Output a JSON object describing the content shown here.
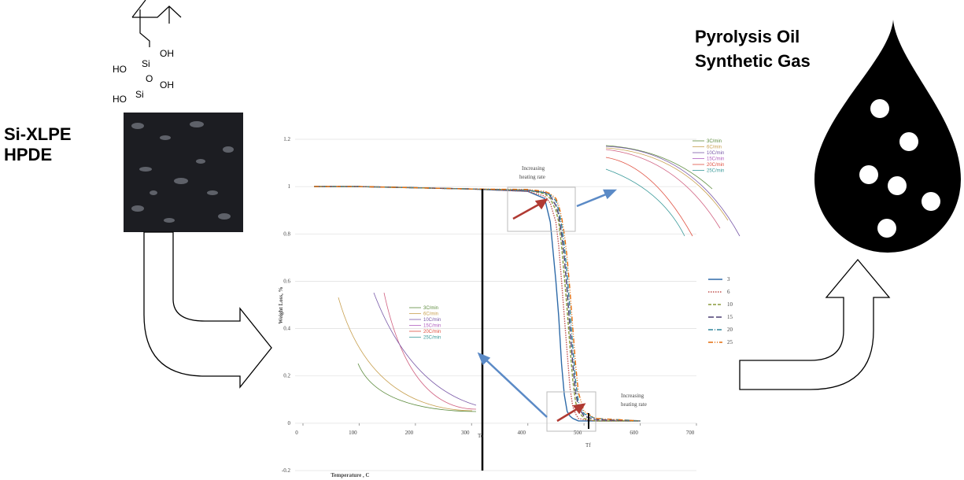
{
  "labels": {
    "material_1": "Si-XLPE",
    "material_2": "HPDE",
    "product_1": "Pyrolysis Oil",
    "product_2": "Synthetic Gas"
  },
  "structure": {
    "labels": [
      "OH",
      "HO",
      "Si",
      "O",
      "OH",
      "HO",
      "Si"
    ]
  },
  "annotations": {
    "increasing_1": [
      "Increasing",
      "heating rate"
    ],
    "increasing_2": [
      "Increasing",
      "heating rate"
    ],
    "t_onset": "To",
    "t_final": "Tf"
  },
  "insets": {
    "top_legend": [
      "3C/min",
      "6C/min",
      "10C/min",
      "15C/min",
      "20C/min",
      "25C/min"
    ],
    "bottom_legend": [
      "3C/min",
      "6C/min",
      "10C/min",
      "15C/min",
      "20C/min",
      "25C/min"
    ]
  },
  "chart_data": {
    "type": "line",
    "x_label": "Temperature , C",
    "y_label": "Weight Loss, %",
    "x": [
      20,
      100,
      200,
      300,
      400,
      430,
      440,
      450,
      455,
      460,
      465,
      470,
      475,
      480,
      485,
      490,
      500,
      520,
      600
    ],
    "series": [
      {
        "name": "3",
        "color": "#2e6aa8",
        "style": "solid",
        "values": [
          1,
          1,
          0.995,
          0.99,
          0.98,
          0.95,
          0.85,
          0.6,
          0.45,
          0.25,
          0.12,
          0.05,
          0.03,
          0.02,
          0.015,
          0.01,
          0.01,
          0.01,
          0.01
        ]
      },
      {
        "name": "6",
        "color": "#c0504d",
        "style": "dotted",
        "values": [
          1,
          1,
          0.995,
          0.99,
          0.98,
          0.96,
          0.93,
          0.85,
          0.75,
          0.6,
          0.45,
          0.3,
          0.15,
          0.07,
          0.04,
          0.02,
          0.015,
          0.01,
          0.01
        ]
      },
      {
        "name": "10",
        "color": "#8a9a3b",
        "style": "dashed",
        "values": [
          1,
          1,
          0.995,
          0.99,
          0.985,
          0.97,
          0.95,
          0.9,
          0.85,
          0.75,
          0.62,
          0.48,
          0.32,
          0.18,
          0.09,
          0.05,
          0.02,
          0.01,
          0.01
        ]
      },
      {
        "name": "15",
        "color": "#4b3f72",
        "style": "longdash",
        "values": [
          1,
          1,
          0.995,
          0.99,
          0.985,
          0.975,
          0.96,
          0.92,
          0.88,
          0.8,
          0.7,
          0.56,
          0.4,
          0.25,
          0.13,
          0.07,
          0.03,
          0.015,
          0.01
        ]
      },
      {
        "name": "20",
        "color": "#31859c",
        "style": "dashdot",
        "values": [
          1,
          1,
          0.995,
          0.99,
          0.985,
          0.975,
          0.965,
          0.94,
          0.9,
          0.84,
          0.75,
          0.63,
          0.48,
          0.32,
          0.18,
          0.09,
          0.04,
          0.02,
          0.01
        ]
      },
      {
        "name": "25",
        "color": "#e46c0a",
        "style": "dashdotdot",
        "values": [
          1,
          1,
          0.995,
          0.99,
          0.988,
          0.98,
          0.97,
          0.95,
          0.92,
          0.87,
          0.8,
          0.7,
          0.56,
          0.4,
          0.25,
          0.13,
          0.05,
          0.02,
          0.01
        ]
      }
    ],
    "xlim": [
      0,
      700
    ],
    "xticks": [
      0,
      100,
      200,
      300,
      400,
      500,
      600,
      700
    ],
    "ylim": [
      -0.2,
      1.2
    ],
    "yticks": [
      -0.2,
      0,
      0.2,
      0.4,
      0.6,
      0.8,
      1,
      1.2
    ],
    "grid": true
  }
}
